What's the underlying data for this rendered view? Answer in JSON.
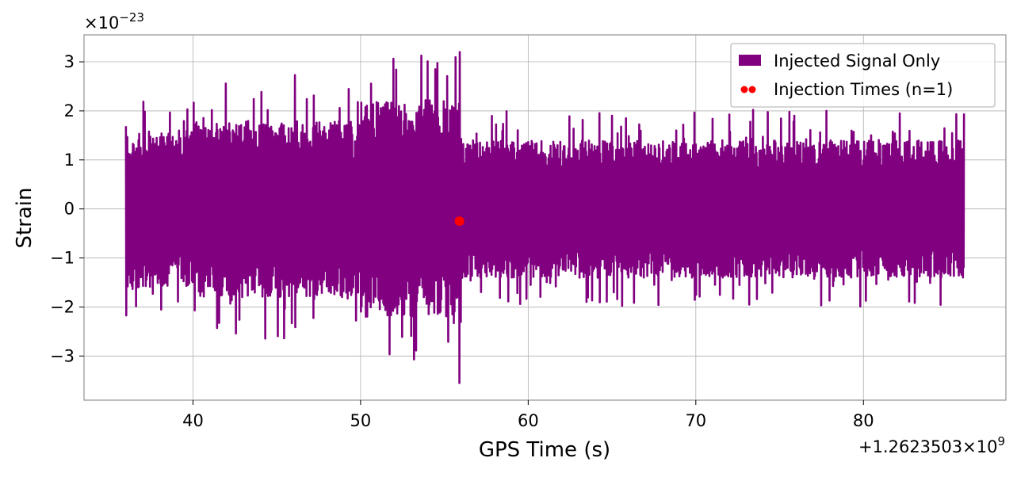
{
  "chart_data": {
    "type": "line",
    "xlabel": "GPS Time (s)",
    "ylabel": "Strain",
    "x_offset_label": "+1.2623503×10",
    "x_offset_exponent": "9",
    "y_multiplier_label": "×10",
    "y_multiplier_exponent": "−23",
    "xlim": [
      33.5,
      88.5
    ],
    "ylim": [
      -3.9,
      3.55
    ],
    "xticks": [
      40,
      50,
      60,
      70,
      80
    ],
    "xtick_labels": [
      "40",
      "50",
      "60",
      "70",
      "80"
    ],
    "yticks": [
      -3,
      -2,
      -1,
      0,
      1,
      2,
      3
    ],
    "ytick_labels": [
      "−3",
      "−2",
      "−1",
      "0",
      "1",
      "2",
      "3"
    ],
    "grid": true,
    "legend_position": "top-right",
    "series": [
      {
        "name": "Injected Signal Only",
        "color": "#800080",
        "kind": "oscillating-strain-trace",
        "x_range": [
          36.0,
          86.0
        ],
        "amplitude_segments": [
          {
            "x": [
              36.0,
              40.0
            ],
            "typical_peak": 1.6,
            "max_peak": 2.2
          },
          {
            "x": [
              40.0,
              50.0
            ],
            "typical_peak": 1.8,
            "max_peak": 2.7
          },
          {
            "x": [
              50.0,
              56.0
            ],
            "typical_peak": 2.2,
            "max_peak": 3.2
          },
          {
            "x": [
              56.0,
              86.0
            ],
            "typical_peak": 1.4,
            "max_peak": 2.0
          }
        ],
        "extremes": [
          {
            "x": 55.9,
            "y": 3.2
          },
          {
            "x": 55.9,
            "y": -3.55
          },
          {
            "x": 46.1,
            "y": 2.73
          },
          {
            "x": 73.4,
            "y": 2.02
          },
          {
            "x": 73.2,
            "y": -1.95
          }
        ]
      },
      {
        "name": "Injection Times (n=1)",
        "color": "#ff0000",
        "kind": "scatter",
        "points": [
          {
            "x": 55.9,
            "y": -0.25
          }
        ]
      }
    ]
  }
}
